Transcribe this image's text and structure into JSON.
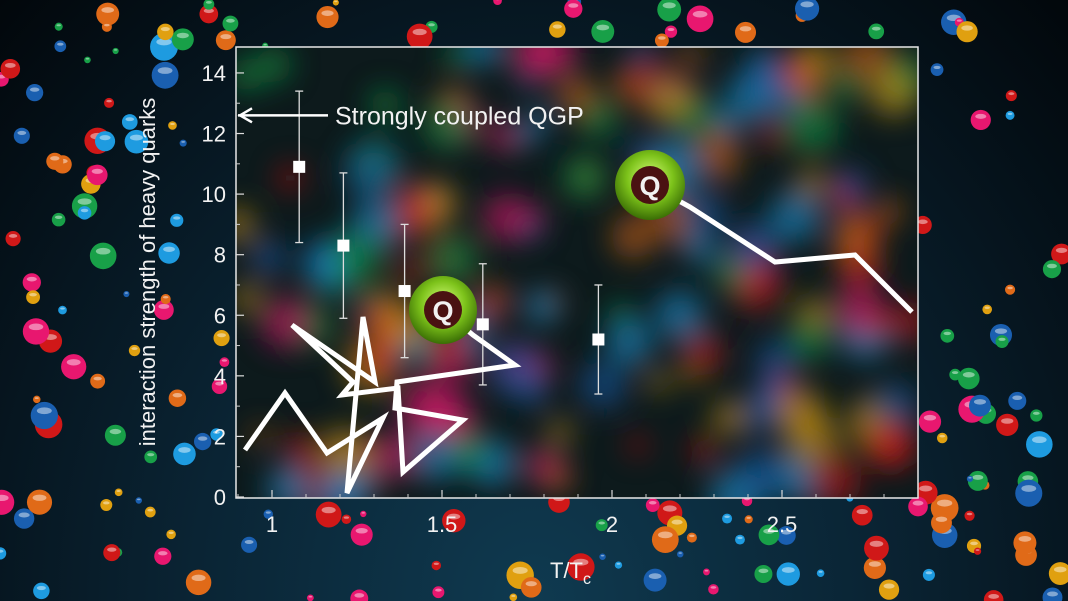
{
  "chart_data": {
    "type": "scatter",
    "title": "",
    "xlabel": "T/T",
    "xlabel_subscript": "c",
    "ylabel": "interaction strength of heavy quarks",
    "xlim": [
      0.89,
      2.9
    ],
    "ylim": [
      0,
      14.8
    ],
    "xticks": [
      1,
      1.5,
      2,
      2.5
    ],
    "xtick_labels": [
      "1",
      "1.5",
      "2",
      "2.5"
    ],
    "yticks": [
      0,
      2,
      4,
      6,
      8,
      10,
      12,
      14
    ],
    "ytick_labels": [
      "0",
      "2",
      "4",
      "6",
      "8",
      "10",
      "12",
      "14"
    ],
    "grid": false,
    "points": [
      {
        "x": 1.08,
        "y": 10.9,
        "err_low": 8.4,
        "err_high": 13.4
      },
      {
        "x": 1.21,
        "y": 8.3,
        "err_low": 5.9,
        "err_high": 10.7
      },
      {
        "x": 1.39,
        "y": 6.8,
        "err_low": 4.6,
        "err_high": 9.0
      },
      {
        "x": 1.62,
        "y": 5.7,
        "err_low": 3.7,
        "err_high": 7.7
      },
      {
        "x": 1.96,
        "y": 5.2,
        "err_low": 3.4,
        "err_high": 7.0
      }
    ],
    "annotation": {
      "text": "Strongly coupled QGP",
      "y": 12.6
    },
    "marker_color": "#ffffff"
  },
  "quark_markers": [
    {
      "label": "Q",
      "color": "#7cc21a"
    },
    {
      "label": "Q",
      "color": "#7cc21a"
    }
  ],
  "colors": {
    "ring": "#7cc21a",
    "core": "#4a1212",
    "path": "#ffffff"
  }
}
